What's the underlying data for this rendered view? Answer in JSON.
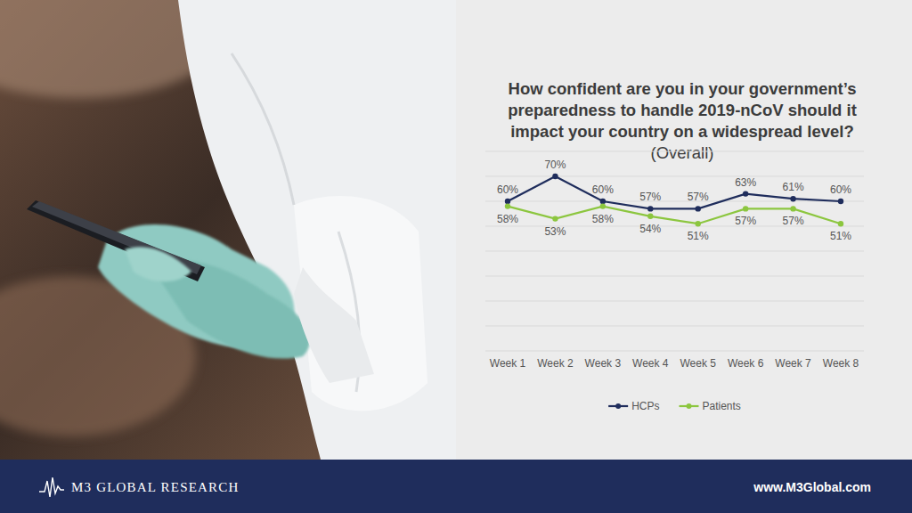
{
  "chart_data": {
    "type": "line",
    "title": "How confident are you in your government’s preparedness to handle 2019-nCoV should it impact your country on a widespread level?",
    "subtitle": "(Overall)",
    "categories": [
      "Week 1",
      "Week 2",
      "Week 3",
      "Week 4",
      "Week 5",
      "Week 6",
      "Week 7",
      "Week 8"
    ],
    "series": [
      {
        "name": "HCPs",
        "color": "#1f2d5c",
        "marker": "circle",
        "values": [
          60,
          70,
          60,
          57,
          57,
          63,
          61,
          60
        ],
        "value_labels": [
          "60%",
          "70%",
          "60%",
          "57%",
          "57%",
          "63%",
          "61%",
          "60%"
        ]
      },
      {
        "name": "Patients",
        "color": "#8cc63f",
        "marker": "circle",
        "values": [
          58,
          53,
          58,
          54,
          51,
          57,
          57,
          51
        ],
        "value_labels": [
          "58%",
          "53%",
          "58%",
          "54%",
          "51%",
          "57%",
          "57%",
          "51%"
        ]
      }
    ],
    "ylim": [
      0,
      80
    ],
    "yticks": [
      0,
      10,
      20,
      30,
      40,
      50,
      60,
      70,
      80
    ],
    "grid": true,
    "data_labels": true,
    "tick_labels": "x",
    "legend": "bottom"
  },
  "footer": {
    "brand": "M3 GLOBAL RESEARCH",
    "url": "www.M3Global.com"
  }
}
